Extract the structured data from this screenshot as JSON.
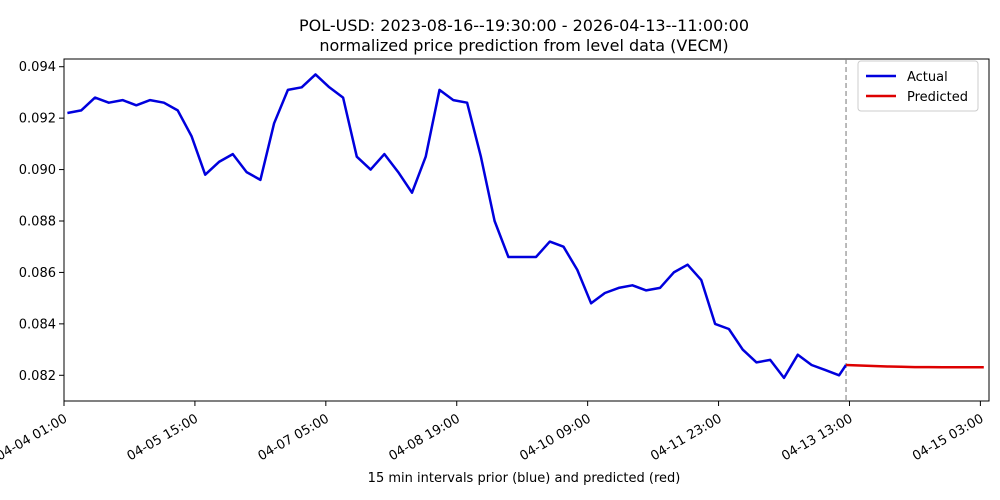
{
  "chart_data": {
    "type": "line",
    "title": "POL-USD: 2023-08-16--19:30:00 - 2026-04-13--11:00:00",
    "subtitle": "normalized price prediction from level data (VECM)",
    "xlabel": "15 min intervals prior (blue) and predicted (red)",
    "ylabel": "",
    "x_ticks": [
      "04-04 01:00",
      "04-05 15:00",
      "04-07 05:00",
      "04-08 19:00",
      "04-10 09:00",
      "04-11 23:00",
      "04-13 13:00",
      "04-15 03:00"
    ],
    "y_ticks": [
      "0.082",
      "0.084",
      "0.086",
      "0.088",
      "0.090",
      "0.092",
      "0.094"
    ],
    "ylim": [
      0.081,
      0.0943
    ],
    "x_range": [
      "04-04 01:00",
      "04-15 05:30"
    ],
    "forecast_start": "04-13 12:00",
    "grid": false,
    "legend_position": "top-right",
    "series": [
      {
        "name": "Actual",
        "color": "#0000dd",
        "points": [
          [
            "04-04 02:00",
            0.0922
          ],
          [
            "04-04 06:00",
            0.0923
          ],
          [
            "04-04 10:00",
            0.0928
          ],
          [
            "04-04 14:00",
            0.0926
          ],
          [
            "04-04 18:00",
            0.0927
          ],
          [
            "04-04 22:00",
            0.0925
          ],
          [
            "04-05 02:00",
            0.0927
          ],
          [
            "04-05 06:00",
            0.0926
          ],
          [
            "04-05 10:00",
            0.0923
          ],
          [
            "04-05 14:00",
            0.0913
          ],
          [
            "04-05 18:00",
            0.0898
          ],
          [
            "04-05 22:00",
            0.0903
          ],
          [
            "04-06 02:00",
            0.0906
          ],
          [
            "04-06 06:00",
            0.0899
          ],
          [
            "04-06 10:00",
            0.0896
          ],
          [
            "04-06 14:00",
            0.0918
          ],
          [
            "04-06 18:00",
            0.0931
          ],
          [
            "04-06 22:00",
            0.0932
          ],
          [
            "04-07 02:00",
            0.0937
          ],
          [
            "04-07 06:00",
            0.0932
          ],
          [
            "04-07 10:00",
            0.0928
          ],
          [
            "04-07 14:00",
            0.0905
          ],
          [
            "04-07 18:00",
            0.09
          ],
          [
            "04-07 22:00",
            0.0906
          ],
          [
            "04-08 02:00",
            0.0899
          ],
          [
            "04-08 06:00",
            0.0891
          ],
          [
            "04-08 10:00",
            0.0905
          ],
          [
            "04-08 14:00",
            0.0931
          ],
          [
            "04-08 18:00",
            0.0927
          ],
          [
            "04-08 22:00",
            0.0926
          ],
          [
            "04-09 02:00",
            0.0905
          ],
          [
            "04-09 06:00",
            0.088
          ],
          [
            "04-09 10:00",
            0.0866
          ],
          [
            "04-09 14:00",
            0.0866
          ],
          [
            "04-09 18:00",
            0.0866
          ],
          [
            "04-09 22:00",
            0.0872
          ],
          [
            "04-10 02:00",
            0.087
          ],
          [
            "04-10 06:00",
            0.0861
          ],
          [
            "04-10 10:00",
            0.0848
          ],
          [
            "04-10 14:00",
            0.0852
          ],
          [
            "04-10 18:00",
            0.0854
          ],
          [
            "04-10 22:00",
            0.0855
          ],
          [
            "04-11 02:00",
            0.0853
          ],
          [
            "04-11 06:00",
            0.0854
          ],
          [
            "04-11 10:00",
            0.086
          ],
          [
            "04-11 14:00",
            0.0863
          ],
          [
            "04-11 18:00",
            0.0857
          ],
          [
            "04-11 22:00",
            0.084
          ],
          [
            "04-12 02:00",
            0.0838
          ],
          [
            "04-12 06:00",
            0.083
          ],
          [
            "04-12 10:00",
            0.0825
          ],
          [
            "04-12 14:00",
            0.0826
          ],
          [
            "04-12 18:00",
            0.0819
          ],
          [
            "04-12 22:00",
            0.0828
          ],
          [
            "04-13 02:00",
            0.0824
          ],
          [
            "04-13 06:00",
            0.0822
          ],
          [
            "04-13 10:00",
            0.082
          ],
          [
            "04-13 12:00",
            0.0824
          ]
        ]
      },
      {
        "name": "Predicted",
        "color": "#dd0000",
        "points": [
          [
            "04-13 12:00",
            0.0824
          ],
          [
            "04-13 16:00",
            0.08238
          ],
          [
            "04-13 20:00",
            0.08236
          ],
          [
            "04-14 00:00",
            0.08234
          ],
          [
            "04-14 04:00",
            0.08233
          ],
          [
            "04-14 08:00",
            0.08232
          ],
          [
            "04-14 12:00",
            0.08232
          ],
          [
            "04-14 16:00",
            0.08231
          ],
          [
            "04-14 20:00",
            0.08231
          ],
          [
            "04-15 00:00",
            0.08231
          ],
          [
            "04-15 04:00",
            0.08231
          ]
        ]
      }
    ]
  }
}
